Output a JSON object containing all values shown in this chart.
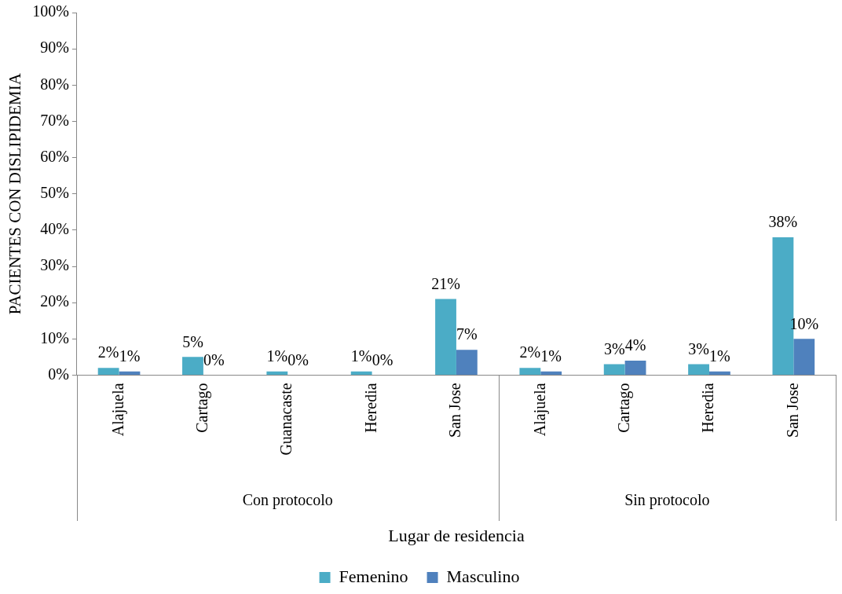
{
  "chart_data": {
    "type": "bar",
    "xlabel": "Lugar de residencia",
    "ylabel": "PACIENTES CON DISLIPIDEMIA",
    "categories": [
      "Alajuela",
      "Cartago",
      "Guanacaste",
      "Heredia",
      "San Jose",
      "Alajuela",
      "Cartago",
      "Heredia",
      "San Jose"
    ],
    "series": [
      {
        "name": "Femenino",
        "color": "#4bacc6",
        "values": [
          2,
          5,
          1,
          1,
          21,
          2,
          3,
          3,
          38
        ],
        "value_labels": [
          "2%",
          "5%",
          "1%",
          "1%",
          "21%",
          "2%",
          "3%",
          "3%",
          "38%"
        ]
      },
      {
        "name": "Masculino",
        "color": "#4f81bd",
        "values": [
          1,
          0,
          0,
          0,
          7,
          1,
          4,
          1,
          10
        ],
        "value_labels": [
          "1%",
          "0%",
          "0%",
          "0%",
          "7%",
          "1%",
          "4%",
          "1%",
          "10%"
        ]
      }
    ],
    "ylim": [
      0,
      100
    ],
    "yticks": [
      {
        "value": 0,
        "label": "0%"
      },
      {
        "value": 10,
        "label": "10%"
      },
      {
        "value": 20,
        "label": "20%"
      },
      {
        "value": 30,
        "label": "30%"
      },
      {
        "value": 40,
        "label": "40%"
      },
      {
        "value": 50,
        "label": "50%"
      },
      {
        "value": 60,
        "label": "60%"
      },
      {
        "value": 70,
        "label": "70%"
      },
      {
        "value": 80,
        "label": "80%"
      },
      {
        "value": 90,
        "label": "90%"
      },
      {
        "value": 100,
        "label": "100%"
      }
    ],
    "annotations": [
      "Con protocolo",
      "Sin protocolo"
    ],
    "grid": false,
    "legend": "bottom"
  }
}
